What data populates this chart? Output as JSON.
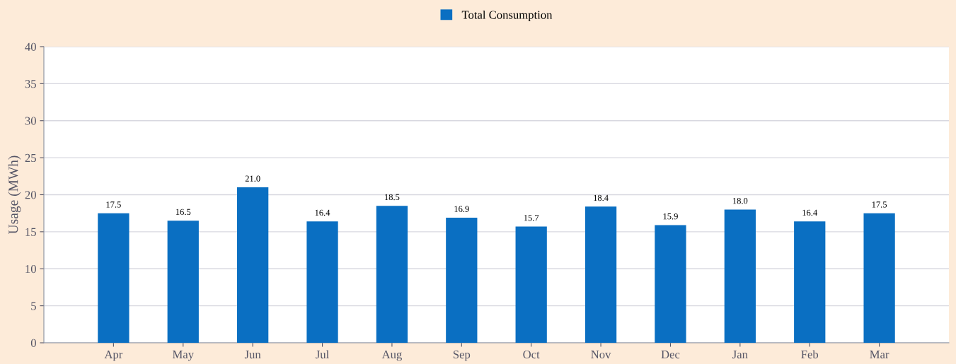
{
  "chart_data": {
    "type": "bar",
    "ylabel": "Usage (MWh)",
    "categories": [
      "Apr",
      "May",
      "Jun",
      "Jul",
      "Aug",
      "Sep",
      "Oct",
      "Nov",
      "Dec",
      "Jan",
      "Feb",
      "Mar"
    ],
    "series": [
      {
        "name": "Total Consumption",
        "color": "#0a6fc2",
        "values": [
          17.5,
          16.5,
          21.0,
          16.4,
          18.5,
          16.9,
          15.7,
          18.4,
          15.9,
          18.0,
          16.4,
          17.5
        ],
        "value_labels": [
          "17.5",
          "16.5",
          "21.0",
          "16.4",
          "18.5",
          "16.9",
          "15.7",
          "18.4",
          "15.9",
          "18.0",
          "16.4",
          "17.5"
        ]
      }
    ],
    "ylim": [
      0,
      40
    ],
    "yticks": [
      0,
      5,
      10,
      15,
      20,
      25,
      30,
      35,
      40
    ],
    "grid": "y",
    "legend": "top"
  }
}
